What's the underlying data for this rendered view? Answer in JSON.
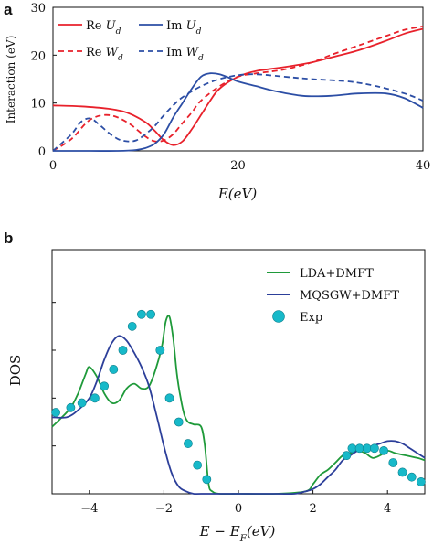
{
  "panels": {
    "a": {
      "letter": "a"
    },
    "b": {
      "letter": "b"
    }
  },
  "chart_data": [
    {
      "type": "line",
      "panel": "a",
      "xlabel": "E(eV)",
      "ylabel": "Interaction (eV)",
      "xlim": [
        0,
        40
      ],
      "ylim": [
        0,
        30
      ],
      "xticks": [
        0,
        20,
        40
      ],
      "yticks": [
        0,
        10,
        20,
        30
      ],
      "legend_position": "top-left",
      "series": [
        {
          "name": "Re U_d",
          "legend_label": "Re U_d",
          "color": "#e8212b",
          "dash": "solid",
          "x": [
            0,
            3,
            6,
            8,
            10,
            11,
            12,
            13,
            14,
            15,
            16,
            17,
            18,
            20,
            22,
            25,
            28,
            30,
            33,
            36,
            38,
            40
          ],
          "y": [
            9.5,
            9.3,
            8.8,
            8,
            6,
            4.2,
            2.2,
            1.2,
            2,
            4.5,
            7.5,
            10.5,
            13,
            15.5,
            16.7,
            17.5,
            18.5,
            19.5,
            21,
            23,
            24.5,
            25.5
          ]
        },
        {
          "name": "Re W_d",
          "legend_label": "Re W_d",
          "color": "#e8212b",
          "dash": "dashed",
          "x": [
            0,
            2,
            4,
            6,
            8,
            10,
            11,
            12,
            13,
            14,
            15,
            16,
            18,
            20,
            22,
            25,
            28,
            30,
            33,
            36,
            38,
            40
          ],
          "y": [
            0,
            2.5,
            6.5,
            7.5,
            6,
            3,
            2,
            2.2,
            3.5,
            5.8,
            8,
            10.5,
            13.5,
            15.5,
            16.2,
            17,
            18.5,
            20,
            22,
            24,
            25.3,
            26
          ]
        },
        {
          "name": "Im U_d",
          "legend_label": "Im U_d",
          "color": "#2c4ea5",
          "dash": "solid",
          "x": [
            0,
            4,
            7,
            9,
            10,
            11,
            12,
            13,
            14,
            15,
            16,
            17,
            18,
            19,
            20,
            22,
            24,
            27,
            30,
            33,
            36,
            38,
            40
          ],
          "y": [
            0,
            0,
            0,
            0.2,
            0.6,
            1.5,
            3.5,
            7,
            10,
            13,
            15.5,
            16.2,
            16,
            15.3,
            14.5,
            13.5,
            12.5,
            11.5,
            11.5,
            12,
            12,
            11,
            9
          ]
        },
        {
          "name": "Im W_d",
          "legend_label": "Im W_d",
          "color": "#2c4ea5",
          "dash": "dashed",
          "x": [
            0,
            2,
            3,
            4,
            5,
            6,
            7,
            8,
            9,
            10,
            11,
            12,
            13,
            14,
            16,
            18,
            20,
            22,
            25,
            28,
            32,
            35,
            38,
            40
          ],
          "y": [
            0,
            3.5,
            6,
            6.8,
            5.5,
            3.8,
            2.5,
            2,
            2.2,
            3.5,
            5.2,
            7.5,
            9.5,
            11.2,
            13.5,
            15,
            15.8,
            16,
            15.5,
            15,
            14.5,
            13.5,
            12,
            10.5
          ]
        }
      ]
    },
    {
      "type": "line",
      "panel": "b",
      "xlabel": "E − E_F(eV)",
      "ylabel": "DOS",
      "xlim": [
        -5,
        5
      ],
      "xticks": [
        -4,
        -2,
        0,
        2,
        4
      ],
      "ylim": [
        0,
        1
      ],
      "legend_position": "top-right",
      "series": [
        {
          "name": "LDA+DMFT",
          "color": "#1f9a3a",
          "kind": "line",
          "x": [
            -5,
            -4.8,
            -4.5,
            -4.3,
            -4.1,
            -4.0,
            -3.8,
            -3.6,
            -3.4,
            -3.2,
            -3.0,
            -2.8,
            -2.6,
            -2.4,
            -2.2,
            -2.05,
            -1.95,
            -1.85,
            -1.75,
            -1.65,
            -1.55,
            -1.45,
            -1.35,
            -1.2,
            -1.0,
            -0.9,
            -0.8,
            -0.7,
            -0.5,
            0,
            1,
            1.8,
            2.0,
            2.2,
            2.4,
            2.6,
            2.8,
            3.0,
            3.2,
            3.4,
            3.6,
            3.8,
            4.0,
            4.2,
            4.5,
            4.8,
            5
          ],
          "y": [
            0.28,
            0.31,
            0.36,
            0.42,
            0.5,
            0.53,
            0.49,
            0.42,
            0.38,
            0.39,
            0.44,
            0.46,
            0.44,
            0.45,
            0.53,
            0.62,
            0.72,
            0.74,
            0.65,
            0.5,
            0.4,
            0.33,
            0.3,
            0.29,
            0.28,
            0.2,
            0.04,
            0.01,
            0.0,
            0.0,
            0.0,
            0.01,
            0.04,
            0.08,
            0.1,
            0.13,
            0.16,
            0.17,
            0.18,
            0.17,
            0.15,
            0.16,
            0.18,
            0.17,
            0.16,
            0.15,
            0.14
          ]
        },
        {
          "name": "MQSGW+DMFT",
          "color": "#2c3f9a",
          "kind": "line",
          "x": [
            -5,
            -4.6,
            -4.3,
            -4.0,
            -3.8,
            -3.6,
            -3.4,
            -3.2,
            -3.0,
            -2.8,
            -2.6,
            -2.4,
            -2.2,
            -2.0,
            -1.8,
            -1.6,
            -1.4,
            -1.2,
            -1.0,
            0,
            1,
            1.5,
            1.8,
            2.0,
            2.2,
            2.4,
            2.6,
            2.8,
            3.0,
            3.2,
            3.4,
            3.6,
            3.8,
            4.0,
            4.2,
            4.4,
            4.6,
            4.8,
            5
          ],
          "y": [
            0.32,
            0.32,
            0.35,
            0.4,
            0.47,
            0.56,
            0.63,
            0.66,
            0.64,
            0.59,
            0.53,
            0.45,
            0.33,
            0.2,
            0.09,
            0.03,
            0.01,
            0.0,
            0.0,
            0.0,
            0.0,
            0.0,
            0.01,
            0.02,
            0.04,
            0.07,
            0.1,
            0.14,
            0.16,
            0.18,
            0.19,
            0.2,
            0.21,
            0.22,
            0.22,
            0.21,
            0.19,
            0.17,
            0.15
          ]
        },
        {
          "name": "Exp",
          "color": "#17b9c9",
          "kind": "scatter",
          "x": [
            -4.9,
            -4.5,
            -4.2,
            -3.85,
            -3.6,
            -3.35,
            -3.1,
            -2.85,
            -2.6,
            -2.35,
            -2.1,
            -1.85,
            -1.6,
            -1.35,
            -1.1,
            -0.85,
            2.9,
            3.05,
            3.25,
            3.45,
            3.65,
            3.9,
            4.15,
            4.4,
            4.65,
            4.9
          ],
          "y": [
            0.34,
            0.36,
            0.38,
            0.4,
            0.45,
            0.52,
            0.6,
            0.7,
            0.75,
            0.75,
            0.6,
            0.4,
            0.3,
            0.21,
            0.12,
            0.06,
            0.16,
            0.19,
            0.19,
            0.19,
            0.19,
            0.18,
            0.13,
            0.09,
            0.07,
            0.05
          ]
        }
      ]
    }
  ]
}
